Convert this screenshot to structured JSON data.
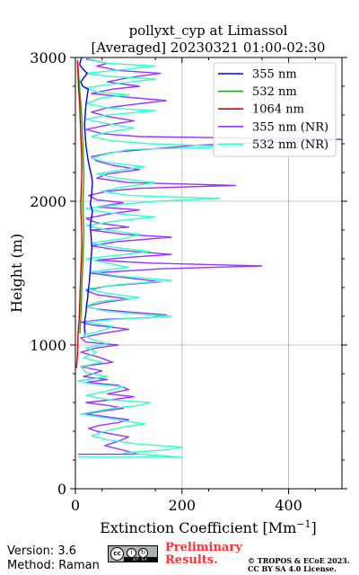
{
  "chart_data": {
    "type": "line",
    "title": "pollyxt_cyp at Limassol",
    "subtitle": "[Averaged] 20230321 01:00-02:30",
    "xlabel": "Extinction Coefficient [Mm",
    "xlabel_sup": "−1",
    "xlabel_end": "]",
    "ylabel": "Height (m)",
    "xlim": [
      0,
      500
    ],
    "ylim": [
      0,
      3000
    ],
    "x_ticks": [
      0,
      200,
      400
    ],
    "x_tick_labels": [
      "0",
      "200",
      "400"
    ],
    "y_ticks": [
      0,
      1000,
      2000,
      3000
    ],
    "y_tick_labels": [
      "0",
      "1000",
      "2000",
      "3000"
    ],
    "grid": true,
    "legend_position": "top-right",
    "series": [
      {
        "name": "355 nm",
        "color": "#0000ff",
        "points": [
          [
            18,
            1080
          ],
          [
            17,
            1120
          ],
          [
            18,
            1180
          ],
          [
            20,
            1230
          ],
          [
            21,
            1280
          ],
          [
            23,
            1330
          ],
          [
            24,
            1380
          ],
          [
            26,
            1430
          ],
          [
            27,
            1480
          ],
          [
            28,
            1530
          ],
          [
            29,
            1580
          ],
          [
            30,
            1630
          ],
          [
            31,
            1680
          ],
          [
            30,
            1730
          ],
          [
            29,
            1780
          ],
          [
            28,
            1830
          ],
          [
            30,
            1880
          ],
          [
            32,
            1930
          ],
          [
            28,
            1980
          ],
          [
            30,
            2030
          ],
          [
            31,
            2080
          ],
          [
            32,
            2130
          ],
          [
            30,
            2180
          ],
          [
            27,
            2230
          ],
          [
            24,
            2280
          ],
          [
            22,
            2330
          ],
          [
            20,
            2380
          ],
          [
            19,
            2430
          ],
          [
            18,
            2480
          ],
          [
            17,
            2530
          ],
          [
            18,
            2580
          ],
          [
            19,
            2630
          ],
          [
            20,
            2680
          ],
          [
            22,
            2730
          ],
          [
            24,
            2780
          ],
          [
            14,
            2800
          ],
          [
            10,
            2830
          ],
          [
            16,
            2860
          ],
          [
            22,
            2890
          ],
          [
            14,
            2920
          ],
          [
            8,
            2950
          ],
          [
            10,
            2980
          ],
          [
            12,
            3000
          ]
        ]
      },
      {
        "name": "532 nm",
        "color": "#00bb00",
        "points": [
          [
            8,
            1080
          ],
          [
            10,
            1180
          ],
          [
            11,
            1280
          ],
          [
            12,
            1380
          ],
          [
            13,
            1480
          ],
          [
            14,
            1580
          ],
          [
            15,
            1680
          ],
          [
            16,
            1780
          ],
          [
            15,
            1880
          ],
          [
            14,
            1980
          ],
          [
            15,
            2080
          ],
          [
            16,
            2180
          ],
          [
            15,
            2280
          ],
          [
            14,
            2380
          ],
          [
            13,
            2480
          ],
          [
            12,
            2580
          ],
          [
            10,
            2680
          ],
          [
            8,
            2780
          ],
          [
            6,
            2880
          ],
          [
            4,
            2980
          ]
        ]
      },
      {
        "name": "1064 nm",
        "color": "#dd0000",
        "points": [
          [
            2,
            840
          ],
          [
            4,
            940
          ],
          [
            5,
            1080
          ],
          [
            7,
            1180
          ],
          [
            8,
            1280
          ],
          [
            9,
            1380
          ],
          [
            10,
            1480
          ],
          [
            11,
            1580
          ],
          [
            12,
            1680
          ],
          [
            12,
            1780
          ],
          [
            11,
            1880
          ],
          [
            10,
            1980
          ],
          [
            11,
            2080
          ],
          [
            12,
            2180
          ],
          [
            12,
            2280
          ],
          [
            11,
            2380
          ],
          [
            10,
            2480
          ],
          [
            9,
            2580
          ],
          [
            8,
            2680
          ],
          [
            6,
            2780
          ],
          [
            5,
            2880
          ],
          [
            4,
            2980
          ]
        ]
      },
      {
        "name": "355 nm (NR)",
        "color": "#9933ff",
        "points": [
          [
            5,
            240
          ],
          [
            120,
            240
          ],
          [
            55,
            300
          ],
          [
            80,
            330
          ],
          [
            100,
            360
          ],
          [
            70,
            380
          ],
          [
            40,
            400
          ],
          [
            25,
            420
          ],
          [
            45,
            440
          ],
          [
            80,
            460
          ],
          [
            100,
            480
          ],
          [
            60,
            500
          ],
          [
            20,
            520
          ],
          [
            50,
            540
          ],
          [
            90,
            560
          ],
          [
            60,
            580
          ],
          [
            20,
            600
          ],
          [
            70,
            620
          ],
          [
            110,
            640
          ],
          [
            60,
            660
          ],
          [
            100,
            690
          ],
          [
            80,
            720
          ],
          [
            20,
            740
          ],
          [
            60,
            760
          ],
          [
            15,
            780
          ],
          [
            50,
            820
          ],
          [
            10,
            850
          ],
          [
            70,
            880
          ],
          [
            40,
            920
          ],
          [
            10,
            950
          ],
          [
            40,
            980
          ],
          [
            80,
            1000
          ],
          [
            20,
            1020
          ],
          [
            10,
            1050
          ],
          [
            50,
            1080
          ],
          [
            100,
            1110
          ],
          [
            30,
            1140
          ],
          [
            10,
            1160
          ],
          [
            60,
            1180
          ],
          [
            140,
            1190
          ],
          [
            170,
            1210
          ],
          [
            100,
            1230
          ],
          [
            40,
            1250
          ],
          [
            20,
            1270
          ],
          [
            60,
            1300
          ],
          [
            100,
            1320
          ],
          [
            40,
            1350
          ],
          [
            20,
            1380
          ],
          [
            60,
            1410
          ],
          [
            160,
            1440
          ],
          [
            90,
            1470
          ],
          [
            30,
            1500
          ],
          [
            160,
            1530
          ],
          [
            350,
            1550
          ],
          [
            140,
            1570
          ],
          [
            40,
            1590
          ],
          [
            100,
            1610
          ],
          [
            180,
            1630
          ],
          [
            80,
            1660
          ],
          [
            30,
            1690
          ],
          [
            80,
            1720
          ],
          [
            180,
            1750
          ],
          [
            90,
            1770
          ],
          [
            30,
            1800
          ],
          [
            100,
            1820
          ],
          [
            40,
            1850
          ],
          [
            20,
            1880
          ],
          [
            60,
            1910
          ],
          [
            120,
            1940
          ],
          [
            40,
            1960
          ],
          [
            90,
            1990
          ],
          [
            40,
            2010
          ],
          [
            25,
            2040
          ],
          [
            60,
            2070
          ],
          [
            120,
            2090
          ],
          [
            300,
            2110
          ],
          [
            100,
            2130
          ],
          [
            40,
            2160
          ],
          [
            60,
            2190
          ],
          [
            120,
            2220
          ],
          [
            70,
            2250
          ],
          [
            40,
            2280
          ],
          [
            30,
            2310
          ],
          [
            70,
            2340
          ],
          [
            130,
            2360
          ],
          [
            230,
            2390
          ],
          [
            500,
            2430
          ],
          [
            120,
            2450
          ],
          [
            50,
            2470
          ],
          [
            20,
            2500
          ],
          [
            60,
            2530
          ],
          [
            110,
            2560
          ],
          [
            60,
            2590
          ],
          [
            30,
            2620
          ],
          [
            60,
            2650
          ],
          [
            100,
            2670
          ],
          [
            170,
            2700
          ],
          [
            80,
            2730
          ],
          [
            30,
            2750
          ],
          [
            70,
            2780
          ],
          [
            120,
            2800
          ],
          [
            60,
            2830
          ],
          [
            100,
            2860
          ],
          [
            160,
            2890
          ],
          [
            80,
            2910
          ],
          [
            40,
            2940
          ],
          [
            60,
            2960
          ],
          [
            20,
            2990
          ]
        ]
      },
      {
        "name": "532 nm (NR)",
        "color": "#33ffcc",
        "points": [
          [
            5,
            220
          ],
          [
            200,
            220
          ],
          [
            90,
            250
          ],
          [
            170,
            270
          ],
          [
            200,
            290
          ],
          [
            120,
            310
          ],
          [
            60,
            340
          ],
          [
            30,
            370
          ],
          [
            55,
            400
          ],
          [
            90,
            430
          ],
          [
            130,
            450
          ],
          [
            80,
            480
          ],
          [
            10,
            520
          ],
          [
            70,
            560
          ],
          [
            120,
            580
          ],
          [
            140,
            600
          ],
          [
            60,
            620
          ],
          [
            20,
            650
          ],
          [
            60,
            680
          ],
          [
            90,
            710
          ],
          [
            30,
            730
          ],
          [
            5,
            750
          ],
          [
            60,
            780
          ],
          [
            20,
            810
          ],
          [
            10,
            850
          ],
          [
            50,
            880
          ],
          [
            15,
            910
          ],
          [
            40,
            950
          ],
          [
            20,
            980
          ],
          [
            60,
            1010
          ],
          [
            30,
            1040
          ],
          [
            15,
            1070
          ],
          [
            50,
            1100
          ],
          [
            70,
            1130
          ],
          [
            20,
            1160
          ],
          [
            80,
            1180
          ],
          [
            180,
            1200
          ],
          [
            100,
            1220
          ],
          [
            50,
            1240
          ],
          [
            20,
            1270
          ],
          [
            40,
            1300
          ],
          [
            120,
            1330
          ],
          [
            60,
            1360
          ],
          [
            20,
            1390
          ],
          [
            80,
            1420
          ],
          [
            180,
            1450
          ],
          [
            80,
            1480
          ],
          [
            30,
            1510
          ],
          [
            100,
            1540
          ],
          [
            60,
            1570
          ],
          [
            20,
            1600
          ],
          [
            90,
            1630
          ],
          [
            140,
            1650
          ],
          [
            70,
            1680
          ],
          [
            30,
            1710
          ],
          [
            90,
            1740
          ],
          [
            120,
            1770
          ],
          [
            60,
            1800
          ],
          [
            20,
            1830
          ],
          [
            70,
            1860
          ],
          [
            150,
            1890
          ],
          [
            60,
            1920
          ],
          [
            20,
            1950
          ],
          [
            90,
            1980
          ],
          [
            150,
            2000
          ],
          [
            270,
            2020
          ],
          [
            100,
            2040
          ],
          [
            50,
            2070
          ],
          [
            90,
            2100
          ],
          [
            150,
            2130
          ],
          [
            80,
            2160
          ],
          [
            40,
            2190
          ],
          [
            90,
            2220
          ],
          [
            130,
            2240
          ],
          [
            60,
            2270
          ],
          [
            30,
            2300
          ],
          [
            60,
            2330
          ],
          [
            100,
            2360
          ],
          [
            300,
            2380
          ],
          [
            140,
            2400
          ],
          [
            70,
            2420
          ],
          [
            30,
            2450
          ],
          [
            60,
            2480
          ],
          [
            110,
            2510
          ],
          [
            60,
            2540
          ],
          [
            20,
            2570
          ],
          [
            60,
            2600
          ],
          [
            150,
            2630
          ],
          [
            60,
            2650
          ],
          [
            20,
            2680
          ],
          [
            50,
            2720
          ],
          [
            100,
            2740
          ],
          [
            40,
            2760
          ],
          [
            20,
            2790
          ],
          [
            80,
            2820
          ],
          [
            150,
            2850
          ],
          [
            60,
            2870
          ],
          [
            20,
            2890
          ],
          [
            100,
            2920
          ],
          [
            150,
            2940
          ],
          [
            60,
            2960
          ],
          [
            25,
            2990
          ]
        ]
      }
    ]
  },
  "footer": {
    "version": "Version: 3.6",
    "method": "Method: Raman",
    "cc_label": "cc",
    "cc_strip": "BY SA",
    "prelim_line1": "Preliminary",
    "prelim_line2": "Results.",
    "copyright_line1": "© TROPOS & ECoE 2023.",
    "copyright_line2": "CC BY SA 4.0 License."
  }
}
